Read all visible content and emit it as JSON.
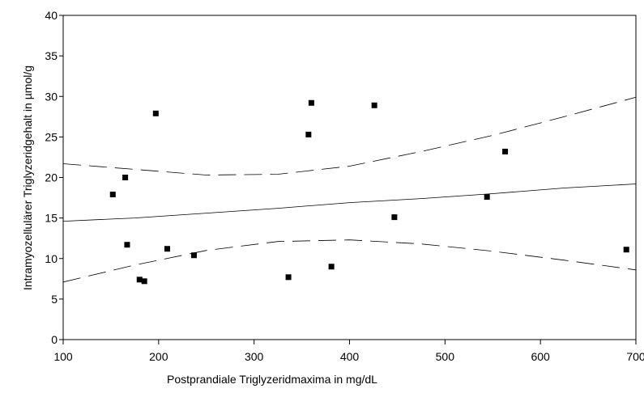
{
  "chart_data": {
    "type": "scatter",
    "xlabel": "Postprandiale Triglyzeridmaxima in mg/dL",
    "ylabel": "Intramyozellulärer Triglyzeridgehalt in µmol/g",
    "xlim": [
      100,
      700
    ],
    "ylim": [
      0,
      40
    ],
    "x_ticks": [
      100,
      200,
      300,
      400,
      500,
      600,
      700
    ],
    "y_ticks": [
      0,
      5,
      10,
      15,
      20,
      25,
      30,
      35,
      40
    ],
    "grid": false,
    "points": [
      {
        "x": 152,
        "y": 17.9
      },
      {
        "x": 165,
        "y": 20.0
      },
      {
        "x": 167,
        "y": 11.7
      },
      {
        "x": 180,
        "y": 7.4
      },
      {
        "x": 185,
        "y": 7.2
      },
      {
        "x": 197,
        "y": 27.9
      },
      {
        "x": 209,
        "y": 11.2
      },
      {
        "x": 237,
        "y": 10.4
      },
      {
        "x": 336,
        "y": 7.7
      },
      {
        "x": 357,
        "y": 25.3
      },
      {
        "x": 360,
        "y": 29.2
      },
      {
        "x": 381,
        "y": 9.0
      },
      {
        "x": 426,
        "y": 28.9
      },
      {
        "x": 447,
        "y": 15.1
      },
      {
        "x": 544,
        "y": 17.6
      },
      {
        "x": 563,
        "y": 23.2
      },
      {
        "x": 690,
        "y": 11.1
      }
    ],
    "regression_line": [
      {
        "x": 100,
        "y": 14.6
      },
      {
        "x": 175,
        "y": 15.0
      },
      {
        "x": 250,
        "y": 15.6
      },
      {
        "x": 325,
        "y": 16.2
      },
      {
        "x": 400,
        "y": 16.9
      },
      {
        "x": 475,
        "y": 17.4
      },
      {
        "x": 550,
        "y": 18.0
      },
      {
        "x": 625,
        "y": 18.7
      },
      {
        "x": 700,
        "y": 19.2
      }
    ],
    "confidence_upper": [
      {
        "x": 100,
        "y": 21.7
      },
      {
        "x": 175,
        "y": 21.0
      },
      {
        "x": 250,
        "y": 20.3
      },
      {
        "x": 325,
        "y": 20.4
      },
      {
        "x": 400,
        "y": 21.4
      },
      {
        "x": 475,
        "y": 23.2
      },
      {
        "x": 550,
        "y": 25.2
      },
      {
        "x": 625,
        "y": 27.5
      },
      {
        "x": 700,
        "y": 29.9
      }
    ],
    "confidence_lower": [
      {
        "x": 100,
        "y": 7.1
      },
      {
        "x": 175,
        "y": 9.2
      },
      {
        "x": 250,
        "y": 11.0
      },
      {
        "x": 325,
        "y": 12.1
      },
      {
        "x": 400,
        "y": 12.3
      },
      {
        "x": 475,
        "y": 11.8
      },
      {
        "x": 550,
        "y": 10.9
      },
      {
        "x": 625,
        "y": 9.8
      },
      {
        "x": 700,
        "y": 8.6
      }
    ]
  }
}
